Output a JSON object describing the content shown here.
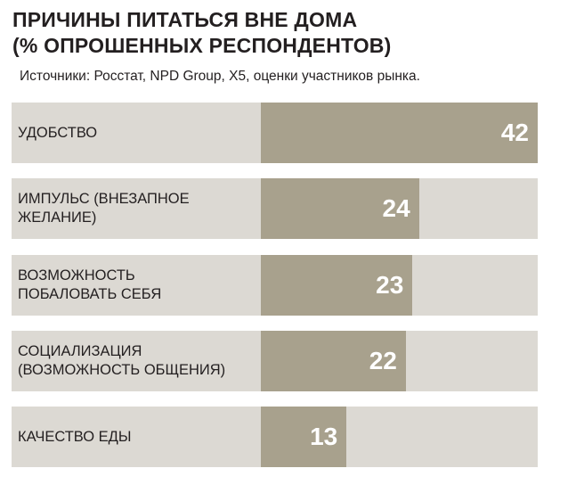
{
  "chart_data": {
    "type": "bar",
    "orientation": "horizontal",
    "title": "ПРИЧИНЫ ПИТАТЬСЯ ВНЕ ДОМА\n(% ОПРОШЕННЫХ РЕСПОНДЕНТОВ)",
    "subtitle": "Источники: Росстат, NPD Group, X5, оценки участников рынка.",
    "categories": [
      "УДОБСТВО",
      "ИМПУЛЬС (ВНЕЗАПНОЕ\nЖЕЛАНИЕ)",
      "ВОЗМОЖНОСТЬ\nПОБАЛОВАТЬ СЕБЯ",
      "СОЦИАЛИЗАЦИЯ\n(ВОЗМОЖНОСТЬ ОБЩЕНИЯ)",
      "КАЧЕСТВО ЕДЫ"
    ],
    "values": [
      42,
      24,
      23,
      22,
      13
    ],
    "color": "#a8a18d",
    "track_color": "#dcd9d3"
  }
}
